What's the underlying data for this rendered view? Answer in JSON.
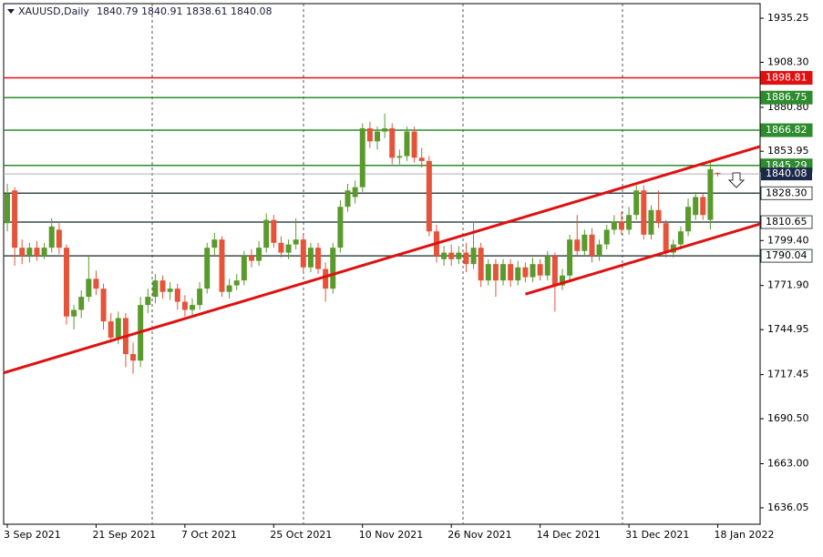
{
  "chart_data": {
    "type": "candlestick",
    "title": "XAUUSD,Daily",
    "categories": [
      "3 Sep 2021",
      null,
      null,
      null,
      null,
      null,
      null,
      null,
      null,
      null,
      null,
      null,
      "21 Sep 2021",
      null,
      null,
      null,
      null,
      null,
      null,
      null,
      null,
      null,
      null,
      null,
      "7 Oct 2021",
      null,
      null,
      null,
      null,
      null,
      null,
      null,
      null,
      null,
      null,
      null,
      "25 Oct 2021",
      null,
      null,
      null,
      null,
      null,
      null,
      null,
      null,
      null,
      null,
      null,
      "10 Nov 2021",
      null,
      null,
      null,
      null,
      null,
      null,
      null,
      null,
      null,
      null,
      null,
      "26 Nov 2021",
      null,
      null,
      null,
      null,
      null,
      null,
      null,
      null,
      null,
      null,
      null,
      "14 Dec 2021",
      null,
      null,
      null,
      null,
      null,
      null,
      null,
      null,
      null,
      null,
      null,
      "31 Dec 2021",
      null,
      null,
      null,
      null,
      null,
      null,
      null,
      null,
      null,
      null,
      null,
      "18 Jan 2022"
    ],
    "open": [
      1810,
      1830,
      1795,
      1790,
      1795,
      1790,
      1795,
      1806,
      1795,
      1753,
      1757,
      1765,
      1776,
      1770,
      1750,
      1740,
      1752,
      1730,
      1726,
      1760,
      1765,
      1775,
      1768,
      1770,
      1762,
      1757,
      1760,
      1770,
      1795,
      1800,
      1768,
      1772,
      1775,
      1790,
      1787,
      1795,
      1812,
      1798,
      1792,
      1797,
      1800,
      1783,
      1795,
      1782,
      1770,
      1795,
      1820,
      1826,
      1832,
      1868,
      1860,
      1866,
      1868,
      1850,
      1851,
      1866,
      1850,
      1848,
      1805,
      1788,
      1792,
      1788,
      1792,
      1785,
      1795,
      1775,
      1785,
      1775,
      1785,
      1775,
      1783,
      1777,
      1785,
      1778,
      1790,
      1772,
      1778,
      1800,
      1793,
      1803,
      1790,
      1797,
      1806,
      1811,
      1806,
      1815,
      1830,
      1803,
      1818,
      1810,
      1792,
      1797,
      1805,
      1815,
      1826,
      1812,
      1840.79
    ],
    "high": [
      1834,
      1832,
      1800,
      1798,
      1799,
      1798,
      1813,
      1810,
      1797,
      1760,
      1769,
      1790,
      1781,
      1773,
      1755,
      1756,
      1755,
      1737,
      1765,
      1770,
      1779,
      1778,
      1774,
      1773,
      1766,
      1764,
      1774,
      1798,
      1804,
      1802,
      1776,
      1779,
      1793,
      1794,
      1799,
      1816,
      1815,
      1802,
      1800,
      1813,
      1803,
      1798,
      1798,
      1786,
      1798,
      1824,
      1834,
      1836,
      1871,
      1872,
      1869,
      1877,
      1871,
      1855,
      1869,
      1869,
      1856,
      1851,
      1809,
      1796,
      1797,
      1796,
      1798,
      1810,
      1798,
      1788,
      1788,
      1788,
      1788,
      1787,
      1786,
      1789,
      1788,
      1793,
      1792,
      1782,
      1803,
      1815,
      1806,
      1807,
      1800,
      1809,
      1815,
      1817,
      1820,
      1833,
      1833,
      1821,
      1830,
      1812,
      1800,
      1808,
      1825,
      1829,
      1828,
      1847,
      1840.91
    ],
    "low": [
      1805,
      1784,
      1785,
      1786,
      1787,
      1788,
      1792,
      1791,
      1748,
      1745,
      1752,
      1762,
      1766,
      1745,
      1737,
      1736,
      1722,
      1718,
      1722,
      1755,
      1761,
      1764,
      1763,
      1757,
      1753,
      1754,
      1757,
      1767,
      1790,
      1765,
      1764,
      1769,
      1772,
      1783,
      1784,
      1792,
      1795,
      1789,
      1788,
      1794,
      1780,
      1780,
      1779,
      1762,
      1767,
      1792,
      1817,
      1822,
      1829,
      1856,
      1855,
      1862,
      1846,
      1846,
      1848,
      1847,
      1844,
      1802,
      1786,
      1784,
      1784,
      1785,
      1780,
      1782,
      1771,
      1772,
      1765,
      1772,
      1771,
      1772,
      1774,
      1774,
      1775,
      1775,
      1756,
      1769,
      1775,
      1790,
      1790,
      1786,
      1787,
      1794,
      1803,
      1803,
      1803,
      1812,
      1800,
      1800,
      1807,
      1789,
      1789,
      1794,
      1802,
      1812,
      1812,
      1806,
      1838.61
    ],
    "close": [
      1828,
      1795,
      1790,
      1795,
      1790,
      1795,
      1808,
      1795,
      1753,
      1757,
      1765,
      1776,
      1770,
      1750,
      1740,
      1752,
      1730,
      1726,
      1760,
      1765,
      1775,
      1768,
      1770,
      1762,
      1757,
      1760,
      1770,
      1795,
      1800,
      1768,
      1772,
      1775,
      1790,
      1787,
      1795,
      1812,
      1798,
      1792,
      1797,
      1800,
      1783,
      1795,
      1782,
      1770,
      1795,
      1820,
      1830,
      1832,
      1868,
      1860,
      1866,
      1868,
      1850,
      1851,
      1866,
      1850,
      1848,
      1805,
      1790,
      1792,
      1788,
      1792,
      1785,
      1795,
      1775,
      1785,
      1775,
      1785,
      1775,
      1783,
      1777,
      1785,
      1778,
      1790,
      1772,
      1778,
      1800,
      1793,
      1803,
      1790,
      1797,
      1806,
      1811,
      1806,
      1815,
      1830,
      1803,
      1818,
      1810,
      1792,
      1797,
      1805,
      1820,
      1826,
      1815,
      1843,
      1840.08
    ],
    "up_color": "#5a9a2c",
    "down_color": "#e5533a",
    "ylim": [
      1626.02,
      1944.16
    ],
    "yticks": [
      1935.25,
      {
        "value": 1908.3,
        "label": "1908.30"
      },
      {
        "value": 1880.8,
        "label": "1880.80"
      },
      1853.95,
      {
        "value": 1799.4,
        "label": "1799.40"
      },
      {
        "value": 1771.9,
        "label": "1771.90"
      },
      1744.95,
      1717.45,
      {
        "value": 1690.5,
        "label": "1690.50"
      },
      {
        "value": 1663,
        "label": "1663.00"
      },
      1636.05
    ],
    "levels": [
      {
        "value": 1898.81,
        "color": "#e01010"
      },
      {
        "value": 1886.75,
        "color": "#2e8b2e"
      },
      {
        "value": 1866.82,
        "color": "#2e8b2e"
      },
      {
        "value": 1845.29,
        "color": "#2e8b2e"
      },
      {
        "value": 1828.3,
        "label": "1828.30",
        "color": "#3a4a4a"
      },
      {
        "value": 1810.65,
        "color": "#3a4a4a"
      },
      {
        "value": 1790.04,
        "color": "#3a4a4a"
      }
    ],
    "trendlines": [
      {
        "color": "#e01010",
        "points": [
          [
            0,
            1719.2
          ],
          [
            96,
            1849.1
          ]
        ]
      },
      {
        "color": "#e01010",
        "points": [
          [
            70,
            1766.6
          ],
          [
            96,
            1801.8
          ]
        ]
      }
    ]
  }
}
